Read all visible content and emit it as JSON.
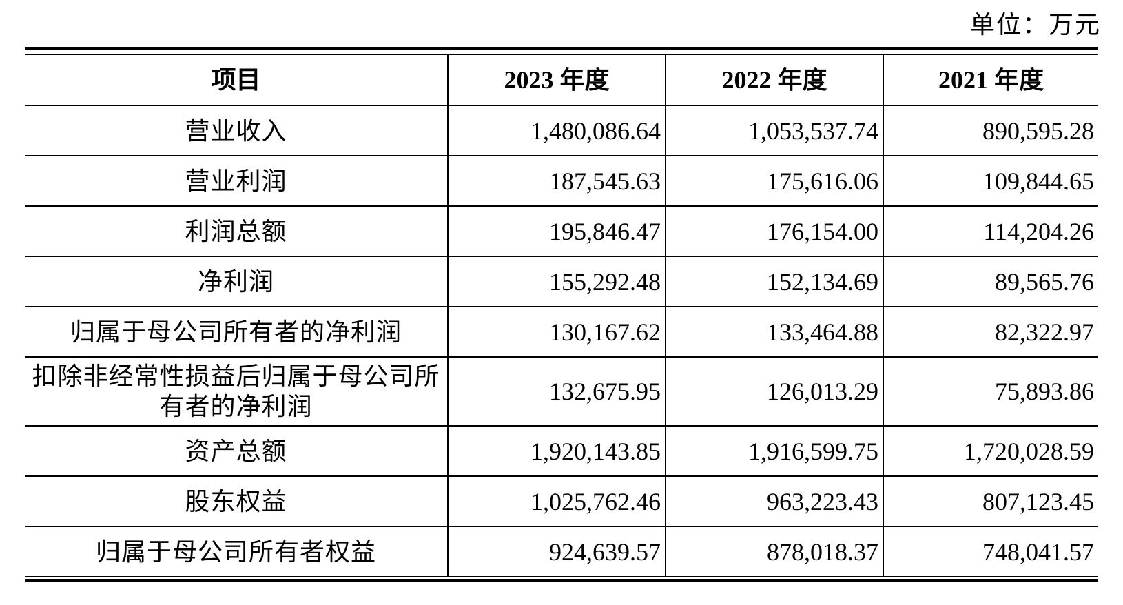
{
  "unit_label": "单位：万元",
  "header": {
    "item": "项目",
    "col_2023": "2023 年度",
    "col_2022": "2022 年度",
    "col_2021": "2021 年度"
  },
  "rows": [
    {
      "item": "营业收入",
      "y2023": "1,480,086.64",
      "y2022": "1,053,537.74",
      "y2021": "890,595.28"
    },
    {
      "item": "营业利润",
      "y2023": "187,545.63",
      "y2022": "175,616.06",
      "y2021": "109,844.65"
    },
    {
      "item": "利润总额",
      "y2023": "195,846.47",
      "y2022": "176,154.00",
      "y2021": "114,204.26"
    },
    {
      "item": "净利润",
      "y2023": "155,292.48",
      "y2022": "152,134.69",
      "y2021": "89,565.76"
    },
    {
      "item": "归属于母公司所有者的净利润",
      "y2023": "130,167.62",
      "y2022": "133,464.88",
      "y2021": "82,322.97"
    },
    {
      "item": "扣除非经常性损益后归属于母公司所有者的净利润",
      "y2023": "132,675.95",
      "y2022": "126,013.29",
      "y2021": "75,893.86"
    },
    {
      "item": "资产总额",
      "y2023": "1,920,143.85",
      "y2022": "1,916,599.75",
      "y2021": "1,720,028.59"
    },
    {
      "item": "股东权益",
      "y2023": "1,025,762.46",
      "y2022": "963,223.43",
      "y2021": "807,123.45"
    },
    {
      "item": "归属于母公司所有者权益",
      "y2023": "924,639.57",
      "y2022": "878,018.37",
      "y2021": "748,041.57"
    }
  ]
}
